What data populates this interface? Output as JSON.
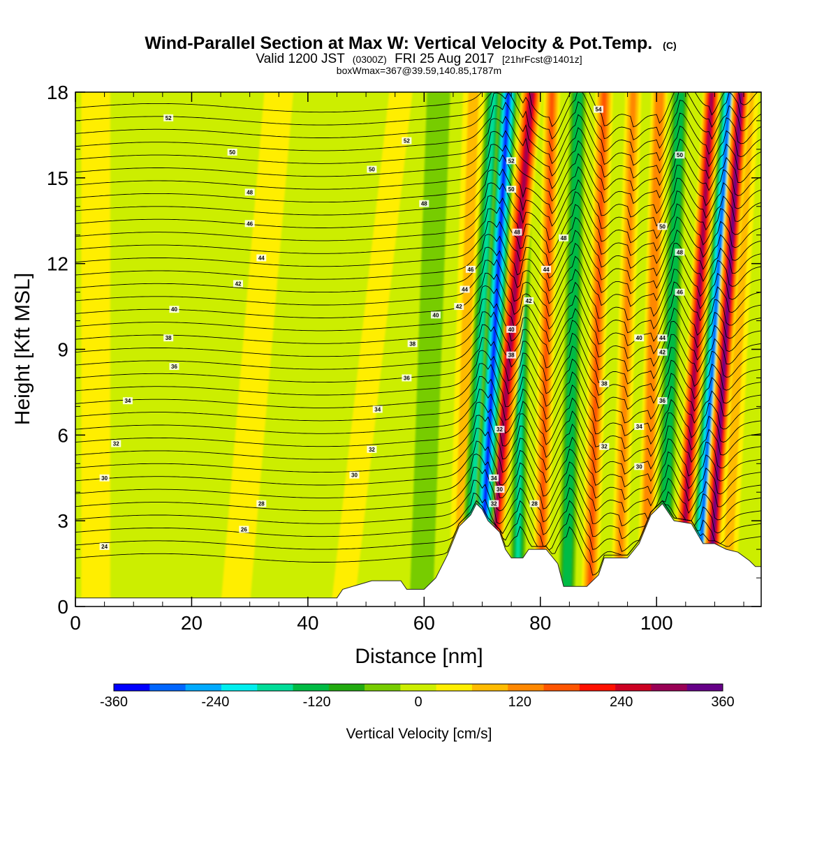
{
  "chart_data": {
    "type": "heatmap",
    "title": "Wind-Parallel Section at Max W: Vertical Velocity & Pot.Temp.",
    "title_mark": "(C)",
    "subtitle_valid": "Valid 1200 JST",
    "subtitle_utc": "(0300Z)",
    "subtitle_date": "FRI 25 Aug 2017",
    "subtitle_fcst": "[21hrFcst@1401z]",
    "subtitle2": "boxWmax=367@39.59,140.85,1787m",
    "xlabel": "Distance [nm]",
    "ylabel": "Height [Kft MSL]",
    "xlim": [
      0,
      118
    ],
    "ylim": [
      0,
      18
    ],
    "xticks": [
      0,
      20,
      40,
      60,
      80,
      100
    ],
    "yticks": [
      0,
      3,
      6,
      9,
      12,
      15,
      18
    ],
    "colorbar": {
      "label": "Vertical Velocity [cm/s]",
      "range": [
        -360,
        360
      ],
      "ticks": [
        -360,
        -240,
        -120,
        0,
        120,
        240,
        360
      ],
      "colors": [
        "#0000ff",
        "#0066ff",
        "#00aaff",
        "#00eeee",
        "#00dd99",
        "#00bb44",
        "#22aa11",
        "#77cc00",
        "#ccee00",
        "#ffee00",
        "#ffbb00",
        "#ff8800",
        "#ff5500",
        "#ff1100",
        "#cc0022",
        "#990055",
        "#660088"
      ]
    },
    "terrain": [
      [
        0,
        0.3
      ],
      [
        45,
        0.3
      ],
      [
        46,
        0.6
      ],
      [
        51,
        0.9
      ],
      [
        56,
        0.9
      ],
      [
        57,
        0.6
      ],
      [
        60,
        0.6
      ],
      [
        62,
        1.0
      ],
      [
        64,
        1.8
      ],
      [
        66,
        2.8
      ],
      [
        68,
        3.2
      ],
      [
        69,
        3.6
      ],
      [
        70,
        3.4
      ],
      [
        71,
        3.0
      ],
      [
        73,
        2.6
      ],
      [
        74,
        2.0
      ],
      [
        75,
        1.7
      ],
      [
        77,
        1.7
      ],
      [
        78,
        2.0
      ],
      [
        81,
        2.0
      ],
      [
        83,
        1.5
      ],
      [
        84,
        0.7
      ],
      [
        88,
        0.7
      ],
      [
        90,
        1.1
      ],
      [
        91,
        1.7
      ],
      [
        95,
        1.7
      ],
      [
        97,
        2.2
      ],
      [
        99,
        3.2
      ],
      [
        101,
        3.6
      ],
      [
        103,
        3.0
      ],
      [
        106,
        2.9
      ],
      [
        108,
        2.2
      ],
      [
        110,
        2.2
      ],
      [
        112,
        2.0
      ],
      [
        114,
        1.9
      ],
      [
        116,
        1.6
      ],
      [
        117,
        1.4
      ],
      [
        118,
        1.4
      ]
    ],
    "vertical_velocity_bands": [
      {
        "x_bottom": 69.5,
        "x_top": 74.5,
        "width": 1.6,
        "peak": -360
      },
      {
        "x_bottom": 71.0,
        "x_top": 78.5,
        "width": 1.8,
        "peak": 290
      },
      {
        "x_bottom": 67.5,
        "x_top": 72.0,
        "width": 1.5,
        "peak": -150
      },
      {
        "x_bottom": 66.0,
        "x_top": 68.5,
        "width": 1.8,
        "peak": 90
      },
      {
        "x_bottom": 76.0,
        "x_top": 77.5,
        "width": 1.3,
        "peak": -160
      },
      {
        "x_bottom": 80.0,
        "x_top": 82.0,
        "width": 1.4,
        "peak": 160
      },
      {
        "x_bottom": 84.5,
        "x_top": 86.5,
        "width": 1.4,
        "peak": -140
      },
      {
        "x_bottom": 88.5,
        "x_top": 91.0,
        "width": 1.5,
        "peak": 150
      },
      {
        "x_bottom": 93.5,
        "x_top": 96.0,
        "width": 1.4,
        "peak": 120
      },
      {
        "x_bottom": 98.0,
        "x_top": 100.5,
        "width": 1.4,
        "peak": 140
      },
      {
        "x_bottom": 101.0,
        "x_top": 104.0,
        "width": 1.4,
        "peak": -140
      },
      {
        "x_bottom": 104.0,
        "x_top": 109.5,
        "width": 1.5,
        "peak": 300
      },
      {
        "x_bottom": 107.0,
        "x_top": 112.5,
        "width": 1.5,
        "peak": -300
      },
      {
        "x_bottom": 109.0,
        "x_top": 114.5,
        "width": 1.5,
        "peak": 320
      },
      {
        "x_bottom": 112.0,
        "x_top": 116.0,
        "width": 1.6,
        "peak": 90
      },
      {
        "x_bottom": 3.5,
        "x_top": 3.5,
        "width": 2.5,
        "peak": 40
      },
      {
        "x_bottom": 27.5,
        "x_top": 35.0,
        "width": 2.5,
        "peak": 40
      },
      {
        "x_bottom": 46.0,
        "x_top": 56.0,
        "width": 2.0,
        "peak": 30
      },
      {
        "x_bottom": 22.0,
        "x_top": 24.0,
        "width": 2.5,
        "peak": -20
      },
      {
        "x_bottom": 59.5,
        "x_top": 62.5,
        "width": 2.0,
        "peak": -40
      }
    ],
    "theta_contours": {
      "base_height": 1.7,
      "spacing": 0.45,
      "count": 36,
      "labels": [
        {
          "x": 16,
          "y": 17.1,
          "text": "52"
        },
        {
          "x": 27,
          "y": 15.9,
          "text": "50"
        },
        {
          "x": 51,
          "y": 15.3,
          "text": "50"
        },
        {
          "x": 57,
          "y": 16.3,
          "text": "52"
        },
        {
          "x": 30,
          "y": 14.5,
          "text": "48"
        },
        {
          "x": 60,
          "y": 14.1,
          "text": "48"
        },
        {
          "x": 30,
          "y": 13.4,
          "text": "46"
        },
        {
          "x": 32,
          "y": 12.2,
          "text": "44"
        },
        {
          "x": 28,
          "y": 11.3,
          "text": "42"
        },
        {
          "x": 17,
          "y": 10.4,
          "text": "40"
        },
        {
          "x": 62,
          "y": 10.2,
          "text": "40"
        },
        {
          "x": 16,
          "y": 9.4,
          "text": "38"
        },
        {
          "x": 58,
          "y": 9.2,
          "text": "38"
        },
        {
          "x": 17,
          "y": 8.4,
          "text": "36"
        },
        {
          "x": 57,
          "y": 8.0,
          "text": "36"
        },
        {
          "x": 9,
          "y": 7.2,
          "text": "34"
        },
        {
          "x": 52,
          "y": 6.9,
          "text": "34"
        },
        {
          "x": 7,
          "y": 5.7,
          "text": "32"
        },
        {
          "x": 51,
          "y": 5.5,
          "text": "32"
        },
        {
          "x": 5,
          "y": 4.5,
          "text": "30"
        },
        {
          "x": 48,
          "y": 4.6,
          "text": "30"
        },
        {
          "x": 32,
          "y": 3.6,
          "text": "28"
        },
        {
          "x": 29,
          "y": 2.7,
          "text": "26"
        },
        {
          "x": 5,
          "y": 2.1,
          "text": "24"
        },
        {
          "x": 68,
          "y": 11.8,
          "text": "46"
        },
        {
          "x": 67,
          "y": 11.1,
          "text": "44"
        },
        {
          "x": 66,
          "y": 10.5,
          "text": "42"
        },
        {
          "x": 75,
          "y": 15.6,
          "text": "52"
        },
        {
          "x": 75,
          "y": 14.6,
          "text": "50"
        },
        {
          "x": 76,
          "y": 13.1,
          "text": "48"
        },
        {
          "x": 84,
          "y": 12.9,
          "text": "48"
        },
        {
          "x": 81,
          "y": 11.8,
          "text": "44"
        },
        {
          "x": 78,
          "y": 10.7,
          "text": "42"
        },
        {
          "x": 75,
          "y": 9.7,
          "text": "40"
        },
        {
          "x": 75,
          "y": 8.8,
          "text": "38"
        },
        {
          "x": 73,
          "y": 6.2,
          "text": "32"
        },
        {
          "x": 72,
          "y": 4.5,
          "text": "34"
        },
        {
          "x": 73,
          "y": 4.1,
          "text": "30"
        },
        {
          "x": 72,
          "y": 3.6,
          "text": "32"
        },
        {
          "x": 79,
          "y": 3.6,
          "text": "28"
        },
        {
          "x": 90,
          "y": 17.4,
          "text": "54"
        },
        {
          "x": 104,
          "y": 15.8,
          "text": "50"
        },
        {
          "x": 101,
          "y": 13.3,
          "text": "50"
        },
        {
          "x": 104,
          "y": 12.4,
          "text": "48"
        },
        {
          "x": 104,
          "y": 11.0,
          "text": "46"
        },
        {
          "x": 97,
          "y": 9.4,
          "text": "40"
        },
        {
          "x": 101,
          "y": 9.4,
          "text": "44"
        },
        {
          "x": 101,
          "y": 8.9,
          "text": "42"
        },
        {
          "x": 91,
          "y": 7.8,
          "text": "38"
        },
        {
          "x": 101,
          "y": 7.2,
          "text": "36"
        },
        {
          "x": 97,
          "y": 6.3,
          "text": "34"
        },
        {
          "x": 91,
          "y": 5.6,
          "text": "32"
        },
        {
          "x": 97,
          "y": 4.9,
          "text": "30"
        }
      ]
    }
  }
}
